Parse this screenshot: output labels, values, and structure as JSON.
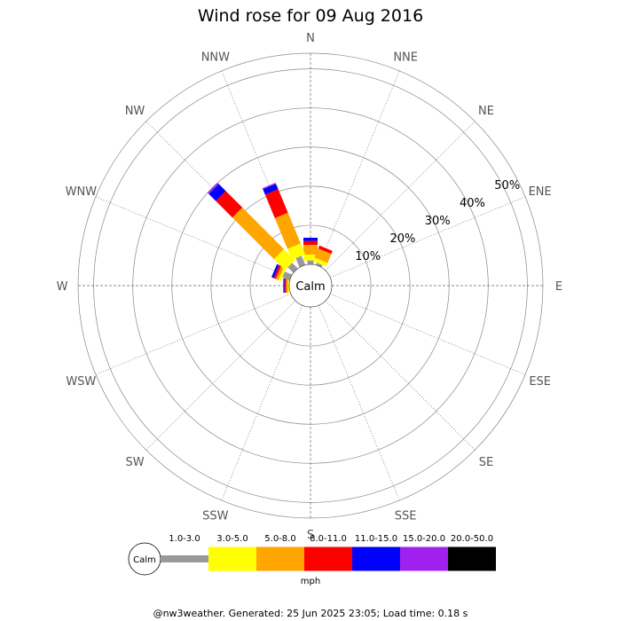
{
  "chart_data": {
    "type": "wind-rose",
    "title": "Wind rose for 09 Aug 2016",
    "units": "mph",
    "calm_label": "Calm",
    "radial_ticks": [
      "10%",
      "20%",
      "30%",
      "40%",
      "50%"
    ],
    "radial_tick_values": [
      10,
      20,
      30,
      40,
      50
    ],
    "max_percent": 54,
    "directions": [
      "N",
      "NNE",
      "NE",
      "ENE",
      "E",
      "ESE",
      "SE",
      "SSE",
      "S",
      "SSW",
      "SW",
      "WSW",
      "W",
      "WNW",
      "NW",
      "NNW"
    ],
    "speed_bins": [
      {
        "label": "1.0-3.0",
        "color": "#999999"
      },
      {
        "label": "3.0-5.0",
        "color": "#ffff00"
      },
      {
        "label": "5.0-8.0",
        "color": "#ffa500"
      },
      {
        "label": "8.0-11.0",
        "color": "#ff0000"
      },
      {
        "label": "11.0-15.0",
        "color": "#0000ff"
      },
      {
        "label": "15.0-20.0",
        "color": "#a020f0"
      },
      {
        "label": "20.0-50.0",
        "color": "#000000"
      }
    ],
    "frequencies": [
      {
        "direction": "N",
        "values": [
          1.0,
          1.5,
          2.5,
          1.0,
          0.8,
          0,
          0
        ]
      },
      {
        "direction": "NNE",
        "values": [
          0.6,
          1.0,
          2.5,
          0.8,
          0,
          0,
          0
        ]
      },
      {
        "direction": "NE",
        "values": [
          0,
          0,
          0,
          0,
          0,
          0,
          0
        ]
      },
      {
        "direction": "ENE",
        "values": [
          0,
          0,
          0,
          0,
          0,
          0,
          0
        ]
      },
      {
        "direction": "E",
        "values": [
          0,
          0,
          0,
          0,
          0,
          0,
          0
        ]
      },
      {
        "direction": "ESE",
        "values": [
          0,
          0,
          0,
          0,
          0,
          0,
          0
        ]
      },
      {
        "direction": "SE",
        "values": [
          0,
          0,
          0,
          0,
          0,
          0,
          0
        ]
      },
      {
        "direction": "SSE",
        "values": [
          0,
          0,
          0,
          0,
          0,
          0,
          0
        ]
      },
      {
        "direction": "S",
        "values": [
          0,
          0,
          0,
          0,
          0,
          0,
          0
        ]
      },
      {
        "direction": "SSW",
        "values": [
          0,
          0,
          0,
          0,
          0,
          0,
          0
        ]
      },
      {
        "direction": "SW",
        "values": [
          0,
          0,
          0,
          0,
          0,
          0,
          0
        ]
      },
      {
        "direction": "WSW",
        "values": [
          0,
          0,
          0,
          0,
          0,
          0,
          0
        ]
      },
      {
        "direction": "W",
        "values": [
          0,
          0.3,
          0.5,
          0.4,
          0.3,
          0,
          0
        ]
      },
      {
        "direction": "WNW",
        "values": [
          2.0,
          0.7,
          0.7,
          0.6,
          0.6,
          0,
          0
        ]
      },
      {
        "direction": "NW",
        "values": [
          2.0,
          4.0,
          15.0,
          6.0,
          2.5,
          0.5,
          0
        ]
      },
      {
        "direction": "NNW",
        "values": [
          2.5,
          3.0,
          8.5,
          6.5,
          1.5,
          0.3,
          0
        ]
      }
    ]
  },
  "footer": "@nw3weather. Generated: 25 Jun 2025 23:05; Load time: 0.18 s"
}
